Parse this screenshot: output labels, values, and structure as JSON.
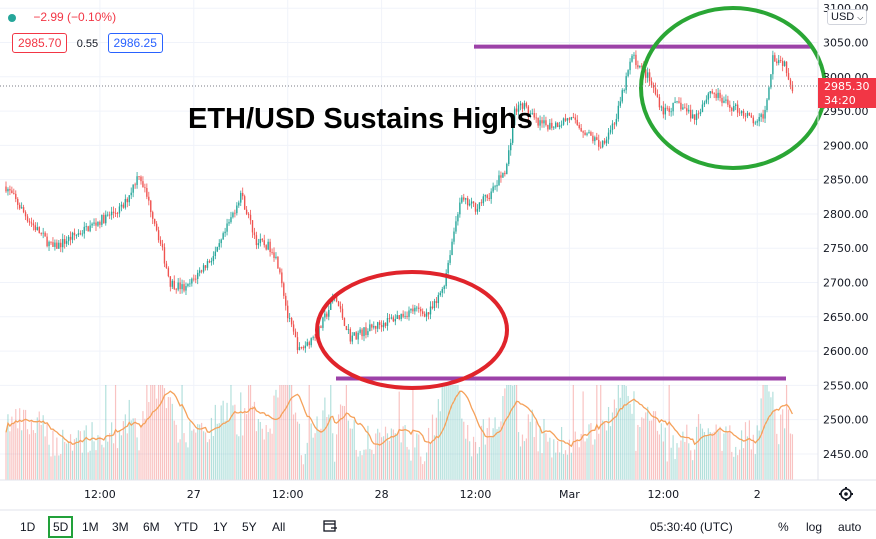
{
  "header": {
    "change": "−2.99 (−0.10%)",
    "bid": "2985.70",
    "spread": "0.55",
    "ask": "2986.25",
    "currency": "USD",
    "chevron_icon": "chevron-down-icon"
  },
  "price_tag": {
    "price": "2985.30",
    "countdown": "34:20"
  },
  "annotation": {
    "title": "ETH/USD Sustains Highs"
  },
  "toolbar": {
    "timeframes": [
      "1D",
      "5D",
      "1M",
      "3M",
      "6M",
      "YTD",
      "1Y",
      "5Y",
      "All"
    ],
    "active": "5D",
    "clock": "05:30:40 (UTC)",
    "percent": "%",
    "log": "log",
    "auto": "auto",
    "compare_icon": "date-range-icon",
    "settings_icon": "gear-icon"
  },
  "chart_data": {
    "type": "candlestick",
    "title": "ETH/USD Sustains Highs",
    "y_ticks": [
      3100,
      3050,
      3000,
      2950,
      2900,
      2850,
      2800,
      2750,
      2700,
      2650,
      2600,
      2550,
      2500,
      2450
    ],
    "y_tick_labels": [
      "3100.00",
      "3050.00",
      "3000.00",
      "2950.00",
      "2900.00",
      "2850.00",
      "2800.00",
      "2750.00",
      "2700.00",
      "2650.00",
      "2600.00",
      "2550.00",
      "2500.00",
      "2450.00"
    ],
    "ylim": [
      2412,
      3112
    ],
    "x_ticks": [
      "12:00",
      "27",
      "12:00",
      "28",
      "12:00",
      "Mar",
      "12:00",
      "2"
    ],
    "x_tick_hours": [
      12,
      24,
      36,
      48,
      60,
      72,
      84,
      96
    ],
    "xlim_hours": [
      0,
      103
    ],
    "price_path": [
      [
        0,
        2840
      ],
      [
        3,
        2790
      ],
      [
        6,
        2750
      ],
      [
        9,
        2770
      ],
      [
        12,
        2790
      ],
      [
        15,
        2810
      ],
      [
        17,
        2860
      ],
      [
        19,
        2790
      ],
      [
        21,
        2700
      ],
      [
        23,
        2690
      ],
      [
        25,
        2720
      ],
      [
        27,
        2745
      ],
      [
        29,
        2800
      ],
      [
        30,
        2830
      ],
      [
        32,
        2760
      ],
      [
        34,
        2750
      ],
      [
        35,
        2720
      ],
      [
        36,
        2650
      ],
      [
        37.5,
        2600
      ],
      [
        40,
        2630
      ],
      [
        42,
        2680
      ],
      [
        44,
        2620
      ],
      [
        46,
        2630
      ],
      [
        48,
        2640
      ],
      [
        50,
        2650
      ],
      [
        52,
        2660
      ],
      [
        54,
        2655
      ],
      [
        55,
        2670
      ],
      [
        56,
        2700
      ],
      [
        57,
        2760
      ],
      [
        58,
        2820
      ],
      [
        60,
        2810
      ],
      [
        62,
        2830
      ],
      [
        64,
        2870
      ],
      [
        65,
        2950
      ],
      [
        66,
        2960
      ],
      [
        68,
        2930
      ],
      [
        70,
        2930
      ],
      [
        72,
        2940
      ],
      [
        74,
        2920
      ],
      [
        76,
        2900
      ],
      [
        78,
        2940
      ],
      [
        80,
        3030
      ],
      [
        82,
        3000
      ],
      [
        84,
        2950
      ],
      [
        86,
        2960
      ],
      [
        88,
        2940
      ],
      [
        90,
        2980
      ],
      [
        92,
        2960
      ],
      [
        94,
        2950
      ],
      [
        96,
        2930
      ],
      [
        97,
        2950
      ],
      [
        98,
        3030
      ],
      [
        99.5,
        3020
      ],
      [
        100.5,
        2985
      ]
    ],
    "volume_range": [
      0,
      1
    ],
    "resistance_line": {
      "price": 3044
    },
    "support_line": {
      "price": 2560
    },
    "last_price": 2985.3
  }
}
